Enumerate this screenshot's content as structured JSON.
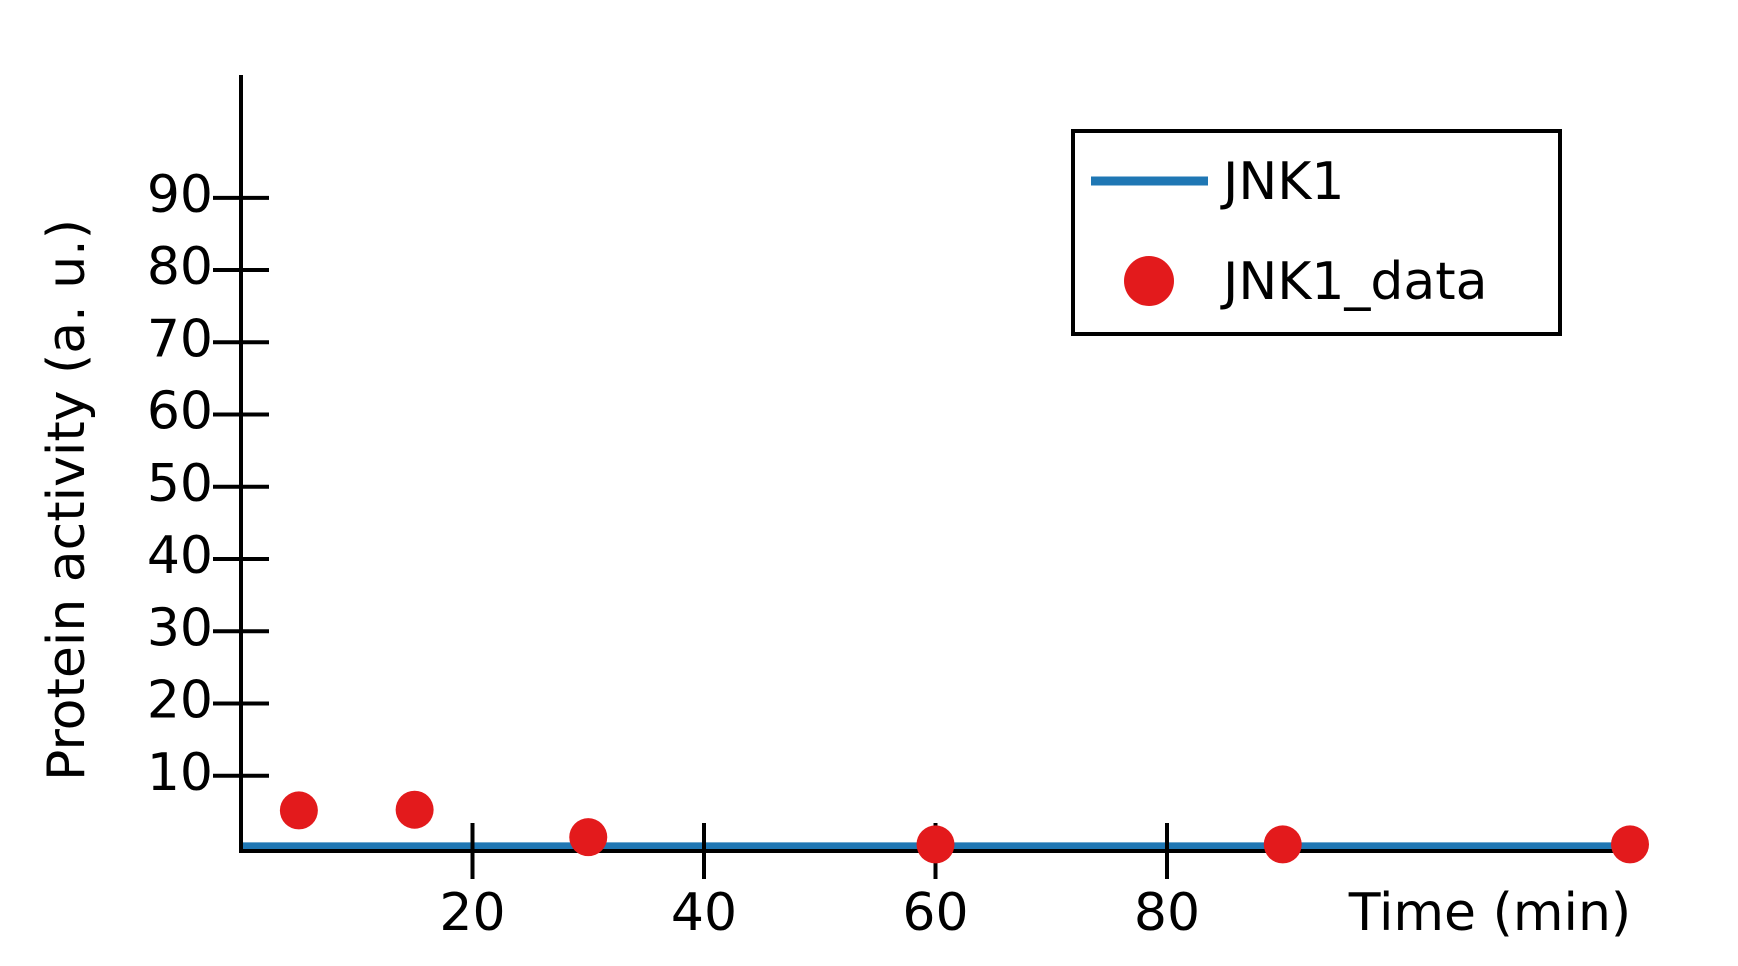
{
  "chart_data": {
    "type": "scatter",
    "xlabel": "Time (min)",
    "ylabel": "Protein activity (a. u.)",
    "xlim": [
      0,
      120
    ],
    "ylim": [
      0,
      107
    ],
    "xticks": [
      20,
      40,
      60,
      80
    ],
    "yticks": [
      10,
      20,
      30,
      40,
      50,
      60,
      70,
      80,
      90
    ],
    "legend": "upper right",
    "series": [
      {
        "name": "JNK1",
        "color": "#1f77b4",
        "kind": "line",
        "x": [
          0,
          120
        ],
        "values": [
          0.3,
          0.3
        ]
      },
      {
        "name": "JNK1_data",
        "color": "#e31a1c",
        "kind": "points",
        "x": [
          5,
          15,
          30,
          60,
          90,
          120
        ],
        "values": [
          5.2,
          5.3,
          1.5,
          0.5,
          0.5,
          0.5
        ]
      }
    ]
  }
}
